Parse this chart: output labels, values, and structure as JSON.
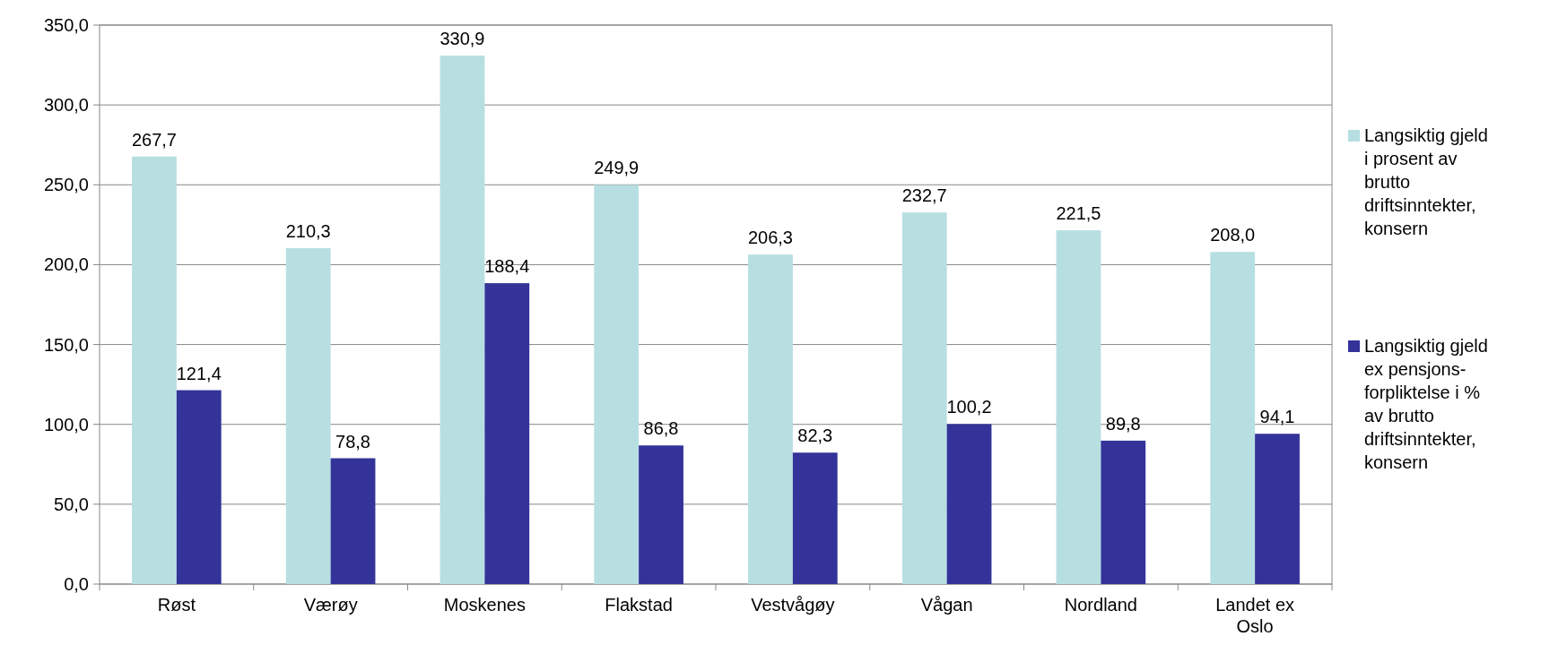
{
  "chart_data": {
    "type": "bar",
    "categories": [
      "Røst",
      "Værøy",
      "Moskenes",
      "Flakstad",
      "Vestvågøy",
      "Vågan",
      "Nordland",
      "Landet ex Oslo"
    ],
    "series": [
      {
        "name": "Langsiktig gjeld i prosent av brutto driftsinntekter, konsern",
        "color": "#b7dfe2",
        "values": [
          267.7,
          210.3,
          330.9,
          249.9,
          206.3,
          232.7,
          221.5,
          208.0
        ],
        "value_labels": [
          "267,7",
          "210,3",
          "330,9",
          "249,9",
          "206,3",
          "232,7",
          "221,5",
          "208,0"
        ]
      },
      {
        "name": "Langsiktig gjeld ex pensjons-forpliktelse  i % av brutto driftsinntekter, konsern",
        "color": "#333399",
        "values": [
          121.4,
          78.8,
          188.4,
          86.8,
          82.3,
          100.2,
          89.8,
          94.1
        ],
        "value_labels": [
          "121,4",
          "78,8",
          "188,4",
          "86,8",
          "82,3",
          "100,2",
          "89,8",
          "94,1"
        ]
      }
    ],
    "ylim": [
      0,
      350
    ],
    "yticks": [
      {
        "value": 0,
        "label": "0,0"
      },
      {
        "value": 50,
        "label": "50,0"
      },
      {
        "value": 100,
        "label": "100,0"
      },
      {
        "value": 150,
        "label": "150,0"
      },
      {
        "value": 200,
        "label": "200,0"
      },
      {
        "value": 250,
        "label": "250,0"
      },
      {
        "value": 300,
        "label": "300,0"
      },
      {
        "value": 350,
        "label": "350,0"
      }
    ],
    "grid": "y",
    "legend": "right"
  }
}
